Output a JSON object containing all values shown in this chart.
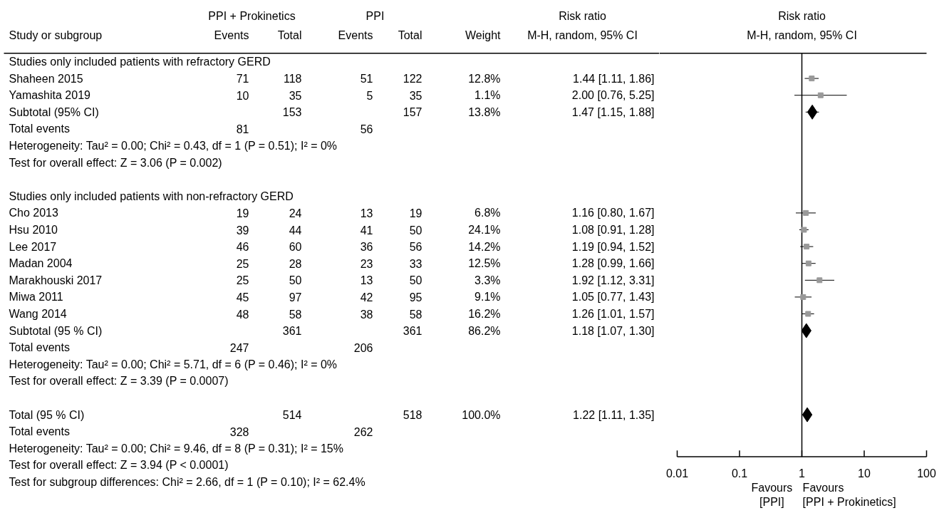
{
  "chart_data": [
    {
      "type": "other",
      "ylabel": "Study or subgroup",
      "categories": [
        "Studies only included patients with refractory GERD",
        "Shaheen 2015",
        "Yamashita 2019",
        "Subtotal (95% CI)",
        "Total events",
        "Heterogeneity: Tau² = 0.00; Chi² = 0.43, df = 1 (P = 0.51); I² = 0%",
        "Test for overall effect: Z = 3.06 (P = 0.002)",
        null,
        "Studies only included patients with non-refractory GERD",
        "Cho 2013",
        "Hsu 2010",
        "Lee 2017",
        "Madan 2004",
        "Marakhouski 2017",
        "Miwa 2011",
        "Wang 2014",
        "Subtotal (95 % CI)",
        "Total events",
        "Heterogeneity: Tau² = 0.00; Chi² = 5.71, df = 6 (P = 0.46); I² = 0%",
        "Test for overall effect: Z = 3.39 (P = 0.0007)",
        null,
        "Total (95 % CI)",
        "Total events",
        "Heterogeneity: Tau² = 0.00; Chi² = 9.46, df = 8 (P = 0.31); I² = 15%",
        "Test for overall effect: Z = 3.94 (P < 0.0001)",
        "Test for subgroup differences: Chi² = 2.66, df = 1 (P = 0.10); I² = 62.4%"
      ],
      "data_labels": true,
      "annotations": [
        "PPI + Prokinetics",
        "PPI"
      ],
      "series": [
        {
          "name": "Events",
          "values": [
            null,
            71,
            10,
            null,
            81,
            null,
            null,
            null,
            null,
            19,
            39,
            46,
            25,
            25,
            45,
            48,
            null,
            247,
            null,
            null,
            null,
            null,
            328,
            null,
            null,
            null
          ]
        },
        {
          "name": "Total",
          "values": [
            null,
            118,
            35,
            153,
            null,
            null,
            null,
            null,
            null,
            24,
            44,
            60,
            28,
            50,
            97,
            58,
            361,
            null,
            null,
            null,
            null,
            514,
            null,
            null,
            null,
            null
          ]
        },
        {
          "name": "Events",
          "values": [
            null,
            51,
            5,
            null,
            56,
            null,
            null,
            null,
            null,
            13,
            41,
            36,
            23,
            13,
            42,
            38,
            null,
            206,
            null,
            null,
            null,
            null,
            262,
            null,
            null,
            null
          ]
        },
        {
          "name": "Total",
          "values": [
            null,
            122,
            35,
            157,
            null,
            null,
            null,
            null,
            null,
            19,
            50,
            56,
            33,
            50,
            95,
            58,
            361,
            null,
            null,
            null,
            null,
            518,
            null,
            null,
            null,
            null
          ]
        },
        {
          "name": "Weight",
          "values": [
            null,
            12.8,
            1.1,
            13.8,
            null,
            null,
            null,
            null,
            null,
            6.8,
            24.1,
            14.2,
            12.5,
            3.3,
            9.1,
            16.2,
            86.2,
            null,
            null,
            null,
            null,
            100.0,
            null,
            null,
            null,
            null
          ],
          "value_labels": [
            null,
            "12.8%",
            "1.1%",
            "13.8%",
            null,
            null,
            null,
            null,
            null,
            "6.8%",
            "24.1%",
            "14.2%",
            "12.5%",
            "3.3%",
            "9.1%",
            "16.2%",
            "86.2%",
            null,
            null,
            null,
            null,
            "100.0%",
            null,
            null,
            null,
            null
          ]
        },
        {
          "name": "Risk ratio\nM-H, random, 95% CI",
          "values": [
            null,
            1.44,
            2.0,
            1.47,
            null,
            null,
            null,
            null,
            null,
            1.16,
            1.08,
            1.19,
            1.28,
            1.92,
            1.05,
            1.26,
            1.18,
            null,
            null,
            null,
            null,
            1.22,
            null,
            null,
            null,
            null
          ],
          "value_labels": [
            null,
            "1.44 [1.11, 1.86]",
            "2.00 [0.76, 5.25]",
            "1.47 [1.15, 1.88]",
            null,
            null,
            null,
            null,
            null,
            "1.16 [0.80, 1.67]",
            "1.08 [0.91, 1.28]",
            "1.19 [0.94, 1.52]",
            "1.28 [0.99, 1.66]",
            "1.92 [1.12, 3.31]",
            "1.05 [0.77, 1.43]",
            "1.26 [1.01, 1.57]",
            "1.18 [1.07, 1.30]",
            null,
            null,
            null,
            null,
            "1.22 [1.11, 1.35]",
            null,
            null,
            null,
            null
          ]
        }
      ]
    },
    {
      "type": "scatter",
      "orientation": "horizontal",
      "xlabel": "Risk ratio\nM-H, random, 95% CI",
      "categories": [
        null,
        null,
        null,
        null,
        null,
        null,
        null,
        null,
        null,
        null,
        null,
        null,
        null,
        null,
        null,
        null,
        null,
        null,
        null,
        null,
        null,
        null,
        null,
        null
      ],
      "tick_labels": "x",
      "log": "x",
      "xlim": [
        0.01,
        100
      ],
      "xticks": [
        0.01,
        0.1,
        1,
        10,
        100
      ],
      "ref_lines": [
        {
          "axis": "x",
          "value": 1
        }
      ],
      "annotations": [
        "Favours [PPI]",
        "Favours [PPI + Prokinetics]"
      ],
      "series": [
        {
          "marker": "square",
          "color": "#999999",
          "values": [
            null,
            1.44,
            2.0,
            null,
            null,
            null,
            null,
            null,
            null,
            1.16,
            1.08,
            1.19,
            1.28,
            1.92,
            1.05,
            1.26,
            null,
            null,
            null,
            null,
            null,
            null,
            null,
            null
          ],
          "errors": [
            null,
            [
              1.11,
              1.86
            ],
            [
              0.76,
              5.25
            ],
            null,
            null,
            null,
            null,
            null,
            null,
            [
              0.8,
              1.67
            ],
            [
              0.91,
              1.28
            ],
            [
              0.94,
              1.52
            ],
            [
              0.99,
              1.66
            ],
            [
              1.12,
              3.31
            ],
            [
              0.77,
              1.43
            ],
            [
              1.01,
              1.57
            ],
            null,
            null,
            null,
            null,
            null,
            null,
            null,
            null
          ]
        },
        {
          "marker": "diamond",
          "color": "#000000",
          "values": [
            null,
            null,
            null,
            1.47,
            null,
            null,
            null,
            null,
            null,
            null,
            null,
            null,
            null,
            null,
            null,
            null,
            1.18,
            null,
            null,
            null,
            null,
            1.22,
            null,
            null
          ],
          "errors": [
            null,
            null,
            null,
            [
              1.15,
              1.88
            ],
            null,
            null,
            null,
            null,
            null,
            null,
            null,
            null,
            null,
            null,
            null,
            null,
            [
              1.07,
              1.3
            ],
            null,
            null,
            null,
            null,
            [
              1.11,
              1.35
            ],
            null,
            null
          ]
        }
      ]
    }
  ]
}
